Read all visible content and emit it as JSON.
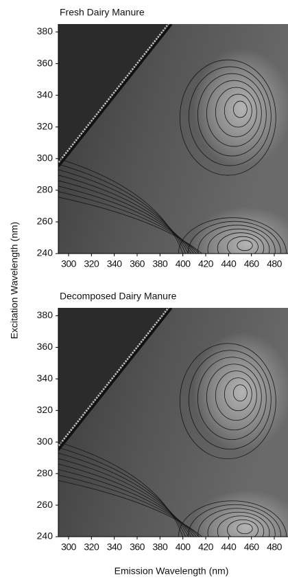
{
  "chart_data": [
    {
      "type": "contour",
      "title": "Fresh Dairy Manure",
      "ylabel": "Excitation Wavelength (nm)",
      "xlim": [
        291,
        492
      ],
      "ylim": [
        240,
        385
      ],
      "xticks": [
        300,
        320,
        340,
        360,
        380,
        400,
        420,
        440,
        460,
        480
      ],
      "yticks": [
        240,
        260,
        280,
        300,
        320,
        340,
        360,
        380
      ]
    },
    {
      "type": "contour",
      "title": "Decomposed Dairy Manure",
      "xlabel": "Emission Wavelength (nm)",
      "xlim": [
        291,
        492
      ],
      "ylim": [
        240,
        385
      ],
      "xticks": [
        300,
        320,
        340,
        360,
        380,
        400,
        420,
        440,
        460,
        480
      ],
      "yticks": [
        240,
        260,
        280,
        300,
        320,
        340,
        360,
        380
      ]
    }
  ]
}
